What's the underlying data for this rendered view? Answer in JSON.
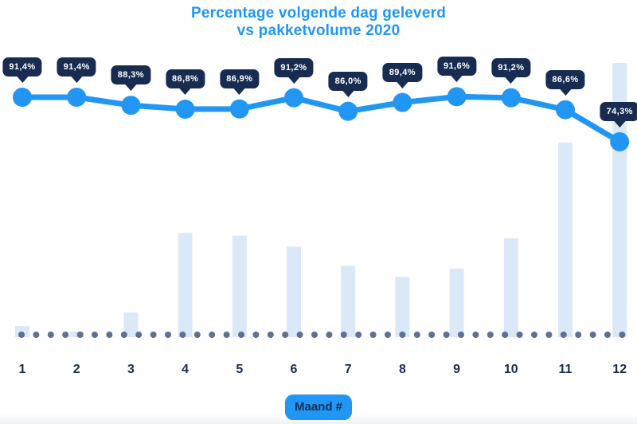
{
  "title": {
    "line1": "Percentage volgende dag geleverd",
    "line2": "vs pakketvolume 2020"
  },
  "x_axis": {
    "label_badge": "Maand #",
    "tick_labels": [
      "1",
      "2",
      "3",
      "4",
      "5",
      "6",
      "7",
      "8",
      "9",
      "10",
      "11",
      "12"
    ]
  },
  "colors": {
    "accent_blue": "#2196F3",
    "title_blue": "#2196F3",
    "tooltip_navy": "#182C52",
    "tooltip_text": "#FFFFFF",
    "axis_text_navy": "#182C52",
    "bar_light_blue": "#DAE8F7",
    "baseline_dot_slate": "#5E7195",
    "background": "#FFFFFF"
  },
  "chart_data": {
    "type": "line+bar combo",
    "title": "Percentage volgende dag geleverd vs pakketvolume 2020",
    "xlabel": "Maand #",
    "ylabel": "",
    "grid": false,
    "legend": false,
    "categories": [
      "1",
      "2",
      "3",
      "4",
      "5",
      "6",
      "7",
      "8",
      "9",
      "10",
      "11",
      "12"
    ],
    "series": [
      {
        "name": "Percentage volgende dag geleverd",
        "type": "line",
        "unit": "%",
        "values": [
          91.4,
          91.4,
          88.3,
          86.8,
          86.9,
          91.2,
          86.0,
          89.4,
          91.6,
          91.2,
          86.6,
          74.3
        ],
        "point_labels": [
          "91,4%",
          "91,4%",
          "88,3%",
          "86,8%",
          "86,9%",
          "91,2%",
          "86,0%",
          "89,4%",
          "91,6%",
          "91,2%",
          "86,6%",
          "74,3%"
        ]
      },
      {
        "name": "Pakketvolume",
        "type": "bar",
        "unit": "relative index, December = 100 (estimated from bar heights; no value axis shown)",
        "values": [
          4,
          2,
          9,
          38,
          37,
          33,
          26,
          22,
          25,
          36,
          71,
          100
        ]
      }
    ],
    "baseline": {
      "style": "dotted",
      "position": "x-axis"
    }
  }
}
